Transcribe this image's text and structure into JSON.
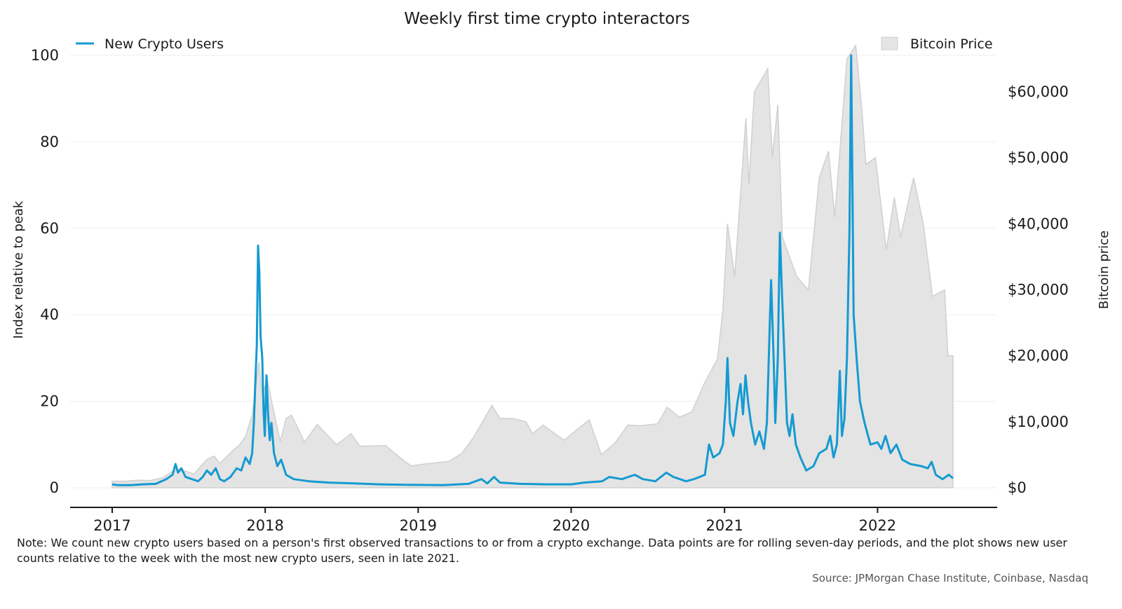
{
  "chart_data": {
    "type": "line",
    "title": "Weekly first time crypto interactors",
    "left_axis": {
      "label": "Index relative to peak",
      "range": [
        0,
        100
      ],
      "ticks": [
        0,
        20,
        40,
        60,
        80,
        100
      ]
    },
    "right_axis": {
      "label": "Bitcoin price",
      "range": [
        0,
        66000
      ],
      "ticks": [
        0,
        10000,
        20000,
        30000,
        40000,
        50000,
        60000
      ],
      "tick_labels": [
        "$0",
        "$10,000",
        "$20,000",
        "$30,000",
        "$40,000",
        "$50,000",
        "$60,000"
      ]
    },
    "x_ticks": [
      "2017",
      "2018",
      "2019",
      "2020",
      "2021",
      "2022"
    ],
    "x_range": [
      "2017-01-01",
      "2022-06-30"
    ],
    "grid": "horizontal",
    "legend": [
      {
        "name": "New Crypto Users",
        "placement": "top-left"
      },
      {
        "name": "Bitcoin Price",
        "placement": "top-right"
      }
    ],
    "colors": {
      "users": "#149ad1",
      "price_fill": "#e4e4e4",
      "price_line": "#d0d0d0"
    },
    "series": [
      {
        "name": "New Crypto Users",
        "axis": "left",
        "points": [
          [
            "2017-01-01",
            0.8
          ],
          [
            "2017-01-15",
            0.6
          ],
          [
            "2017-02-15",
            0.6
          ],
          [
            "2017-03-15",
            0.8
          ],
          [
            "2017-04-15",
            0.9
          ],
          [
            "2017-05-10",
            2.0
          ],
          [
            "2017-05-25",
            3.0
          ],
          [
            "2017-06-01",
            5.5
          ],
          [
            "2017-06-07",
            3.5
          ],
          [
            "2017-06-15",
            4.5
          ],
          [
            "2017-06-25",
            2.5
          ],
          [
            "2017-07-10",
            2.0
          ],
          [
            "2017-07-25",
            1.5
          ],
          [
            "2017-08-05",
            2.5
          ],
          [
            "2017-08-15",
            4.0
          ],
          [
            "2017-08-25",
            3.0
          ],
          [
            "2017-09-05",
            4.5
          ],
          [
            "2017-09-15",
            2.0
          ],
          [
            "2017-09-25",
            1.5
          ],
          [
            "2017-10-10",
            2.5
          ],
          [
            "2017-10-25",
            4.5
          ],
          [
            "2017-11-05",
            4.0
          ],
          [
            "2017-11-15",
            7.0
          ],
          [
            "2017-11-25",
            5.5
          ],
          [
            "2017-12-01",
            8.0
          ],
          [
            "2017-12-05",
            15.0
          ],
          [
            "2017-12-08",
            23.0
          ],
          [
            "2017-12-12",
            33.0
          ],
          [
            "2017-12-15",
            56.0
          ],
          [
            "2017-12-18",
            50.0
          ],
          [
            "2017-12-21",
            35.0
          ],
          [
            "2017-12-25",
            30.0
          ],
          [
            "2017-12-28",
            18.0
          ],
          [
            "2017-12-31",
            12.0
          ],
          [
            "2018-01-04",
            26.0
          ],
          [
            "2018-01-08",
            17.0
          ],
          [
            "2018-01-12",
            11.0
          ],
          [
            "2018-01-16",
            15.0
          ],
          [
            "2018-01-22",
            8.0
          ],
          [
            "2018-01-30",
            5.0
          ],
          [
            "2018-02-08",
            6.5
          ],
          [
            "2018-02-20",
            3.0
          ],
          [
            "2018-03-10",
            2.0
          ],
          [
            "2018-04-15",
            1.5
          ],
          [
            "2018-06-01",
            1.2
          ],
          [
            "2018-08-01",
            1.0
          ],
          [
            "2018-10-01",
            0.8
          ],
          [
            "2018-12-01",
            0.7
          ],
          [
            "2019-03-01",
            0.6
          ],
          [
            "2019-05-01",
            0.9
          ],
          [
            "2019-06-01",
            2.0
          ],
          [
            "2019-06-15",
            1.0
          ],
          [
            "2019-07-01",
            2.5
          ],
          [
            "2019-07-15",
            1.2
          ],
          [
            "2019-09-01",
            0.9
          ],
          [
            "2019-11-01",
            0.8
          ],
          [
            "2020-01-01",
            0.8
          ],
          [
            "2020-02-01",
            1.2
          ],
          [
            "2020-03-15",
            1.5
          ],
          [
            "2020-04-01",
            2.5
          ],
          [
            "2020-05-01",
            2.0
          ],
          [
            "2020-06-01",
            3.0
          ],
          [
            "2020-06-20",
            2.0
          ],
          [
            "2020-07-20",
            1.5
          ],
          [
            "2020-08-15",
            3.5
          ],
          [
            "2020-09-01",
            2.5
          ],
          [
            "2020-10-01",
            1.5
          ],
          [
            "2020-10-20",
            2.0
          ],
          [
            "2020-11-15",
            3.0
          ],
          [
            "2020-11-25",
            10.0
          ],
          [
            "2020-12-05",
            7.0
          ],
          [
            "2020-12-20",
            8.0
          ],
          [
            "2020-12-28",
            10.0
          ],
          [
            "2021-01-04",
            20.0
          ],
          [
            "2021-01-08",
            30.0
          ],
          [
            "2021-01-14",
            15.0
          ],
          [
            "2021-01-22",
            12.0
          ],
          [
            "2021-02-01",
            20.0
          ],
          [
            "2021-02-08",
            24.0
          ],
          [
            "2021-02-14",
            17.0
          ],
          [
            "2021-02-20",
            26.0
          ],
          [
            "2021-02-26",
            20.0
          ],
          [
            "2021-03-05",
            15.0
          ],
          [
            "2021-03-15",
            10.0
          ],
          [
            "2021-03-25",
            13.0
          ],
          [
            "2021-04-05",
            9.0
          ],
          [
            "2021-04-12",
            15.0
          ],
          [
            "2021-04-18",
            35.0
          ],
          [
            "2021-04-22",
            48.0
          ],
          [
            "2021-04-28",
            30.0
          ],
          [
            "2021-05-02",
            15.0
          ],
          [
            "2021-05-08",
            30.0
          ],
          [
            "2021-05-13",
            59.0
          ],
          [
            "2021-05-18",
            45.0
          ],
          [
            "2021-05-24",
            30.0
          ],
          [
            "2021-05-30",
            15.0
          ],
          [
            "2021-06-05",
            12.0
          ],
          [
            "2021-06-12",
            17.0
          ],
          [
            "2021-06-20",
            10.0
          ],
          [
            "2021-07-01",
            7.0
          ],
          [
            "2021-07-15",
            4.0
          ],
          [
            "2021-08-01",
            5.0
          ],
          [
            "2021-08-15",
            8.0
          ],
          [
            "2021-09-01",
            9.0
          ],
          [
            "2021-09-10",
            12.0
          ],
          [
            "2021-09-18",
            7.0
          ],
          [
            "2021-09-26",
            10.0
          ],
          [
            "2021-10-03",
            27.0
          ],
          [
            "2021-10-08",
            12.0
          ],
          [
            "2021-10-14",
            16.0
          ],
          [
            "2021-10-20",
            30.0
          ],
          [
            "2021-10-26",
            60.0
          ],
          [
            "2021-10-30",
            100.0
          ],
          [
            "2021-11-05",
            40.0
          ],
          [
            "2021-11-12",
            30.0
          ],
          [
            "2021-11-20",
            20.0
          ],
          [
            "2021-12-01",
            15.0
          ],
          [
            "2021-12-15",
            10.0
          ],
          [
            "2022-01-01",
            10.5
          ],
          [
            "2022-01-10",
            9.0
          ],
          [
            "2022-01-20",
            12.0
          ],
          [
            "2022-02-01",
            8.0
          ],
          [
            "2022-02-15",
            10.0
          ],
          [
            "2022-03-01",
            6.5
          ],
          [
            "2022-03-20",
            5.5
          ],
          [
            "2022-04-15",
            5.0
          ],
          [
            "2022-05-01",
            4.5
          ],
          [
            "2022-05-10",
            6.0
          ],
          [
            "2022-05-20",
            3.0
          ],
          [
            "2022-06-05",
            2.0
          ],
          [
            "2022-06-20",
            3.0
          ],
          [
            "2022-06-30",
            2.2
          ]
        ]
      },
      {
        "name": "Bitcoin Price",
        "axis": "right",
        "points": [
          [
            "2017-01-01",
            1000
          ],
          [
            "2017-02-01",
            1000
          ],
          [
            "2017-03-01",
            1150
          ],
          [
            "2017-04-01",
            1100
          ],
          [
            "2017-05-01",
            1500
          ],
          [
            "2017-05-25",
            2500
          ],
          [
            "2017-06-10",
            2800
          ],
          [
            "2017-07-15",
            2100
          ],
          [
            "2017-08-15",
            4300
          ],
          [
            "2017-09-01",
            4800
          ],
          [
            "2017-09-15",
            3700
          ],
          [
            "2017-10-15",
            5600
          ],
          [
            "2017-11-01",
            6500
          ],
          [
            "2017-11-15",
            7800
          ],
          [
            "2017-12-01",
            11000
          ],
          [
            "2017-12-17",
            19000
          ],
          [
            "2017-12-25",
            14000
          ],
          [
            "2018-01-06",
            16500
          ],
          [
            "2018-01-15",
            13500
          ],
          [
            "2018-02-06",
            7000
          ],
          [
            "2018-02-20",
            10500
          ],
          [
            "2018-03-05",
            11000
          ],
          [
            "2018-04-05",
            6900
          ],
          [
            "2018-05-05",
            9600
          ],
          [
            "2018-06-20",
            6500
          ],
          [
            "2018-07-25",
            8200
          ],
          [
            "2018-08-15",
            6300
          ],
          [
            "2018-10-15",
            6400
          ],
          [
            "2018-11-20",
            4500
          ],
          [
            "2018-12-15",
            3300
          ],
          [
            "2019-01-15",
            3600
          ],
          [
            "2019-02-15",
            3800
          ],
          [
            "2019-03-15",
            4000
          ],
          [
            "2019-04-15",
            5200
          ],
          [
            "2019-05-15",
            7800
          ],
          [
            "2019-06-26",
            12500
          ],
          [
            "2019-07-15",
            10500
          ],
          [
            "2019-08-15",
            10500
          ],
          [
            "2019-09-15",
            10000
          ],
          [
            "2019-10-01",
            8200
          ],
          [
            "2019-10-26",
            9500
          ],
          [
            "2019-12-15",
            7200
          ],
          [
            "2020-01-15",
            8800
          ],
          [
            "2020-02-13",
            10300
          ],
          [
            "2020-03-13",
            5000
          ],
          [
            "2020-04-15",
            6800
          ],
          [
            "2020-05-15",
            9500
          ],
          [
            "2020-06-15",
            9400
          ],
          [
            "2020-07-25",
            9700
          ],
          [
            "2020-08-17",
            12200
          ],
          [
            "2020-09-15",
            10700
          ],
          [
            "2020-10-15",
            11500
          ],
          [
            "2020-11-15",
            16000
          ],
          [
            "2020-12-15",
            19500
          ],
          [
            "2020-12-28",
            27000
          ],
          [
            "2021-01-08",
            40000
          ],
          [
            "2021-01-25",
            32000
          ],
          [
            "2021-02-21",
            56000
          ],
          [
            "2021-02-28",
            46000
          ],
          [
            "2021-03-13",
            60000
          ],
          [
            "2021-04-14",
            63500
          ],
          [
            "2021-04-25",
            50000
          ],
          [
            "2021-05-08",
            58000
          ],
          [
            "2021-05-19",
            38000
          ],
          [
            "2021-06-22",
            32000
          ],
          [
            "2021-07-20",
            30000
          ],
          [
            "2021-08-15",
            47000
          ],
          [
            "2021-09-06",
            51000
          ],
          [
            "2021-09-21",
            41000
          ],
          [
            "2021-10-20",
            65000
          ],
          [
            "2021-11-10",
            67000
          ],
          [
            "2021-11-25",
            57000
          ],
          [
            "2021-12-04",
            49000
          ],
          [
            "2021-12-27",
            50000
          ],
          [
            "2022-01-22",
            36000
          ],
          [
            "2022-02-10",
            44000
          ],
          [
            "2022-02-25",
            38000
          ],
          [
            "2022-03-28",
            47000
          ],
          [
            "2022-04-20",
            40000
          ],
          [
            "2022-05-12",
            29000
          ],
          [
            "2022-06-10",
            30000
          ],
          [
            "2022-06-18",
            20000
          ],
          [
            "2022-06-30",
            20000
          ]
        ]
      }
    ]
  },
  "note": "Note: We count new crypto users based on a person's first observed transactions to or from a crypto exchange. Data points are for rolling seven-day periods, and the plot shows new user counts relative to the week with the most new crypto users, seen in late 2021.",
  "source": "Source: JPMorgan Chase Institute, Coinbase, Nasdaq"
}
